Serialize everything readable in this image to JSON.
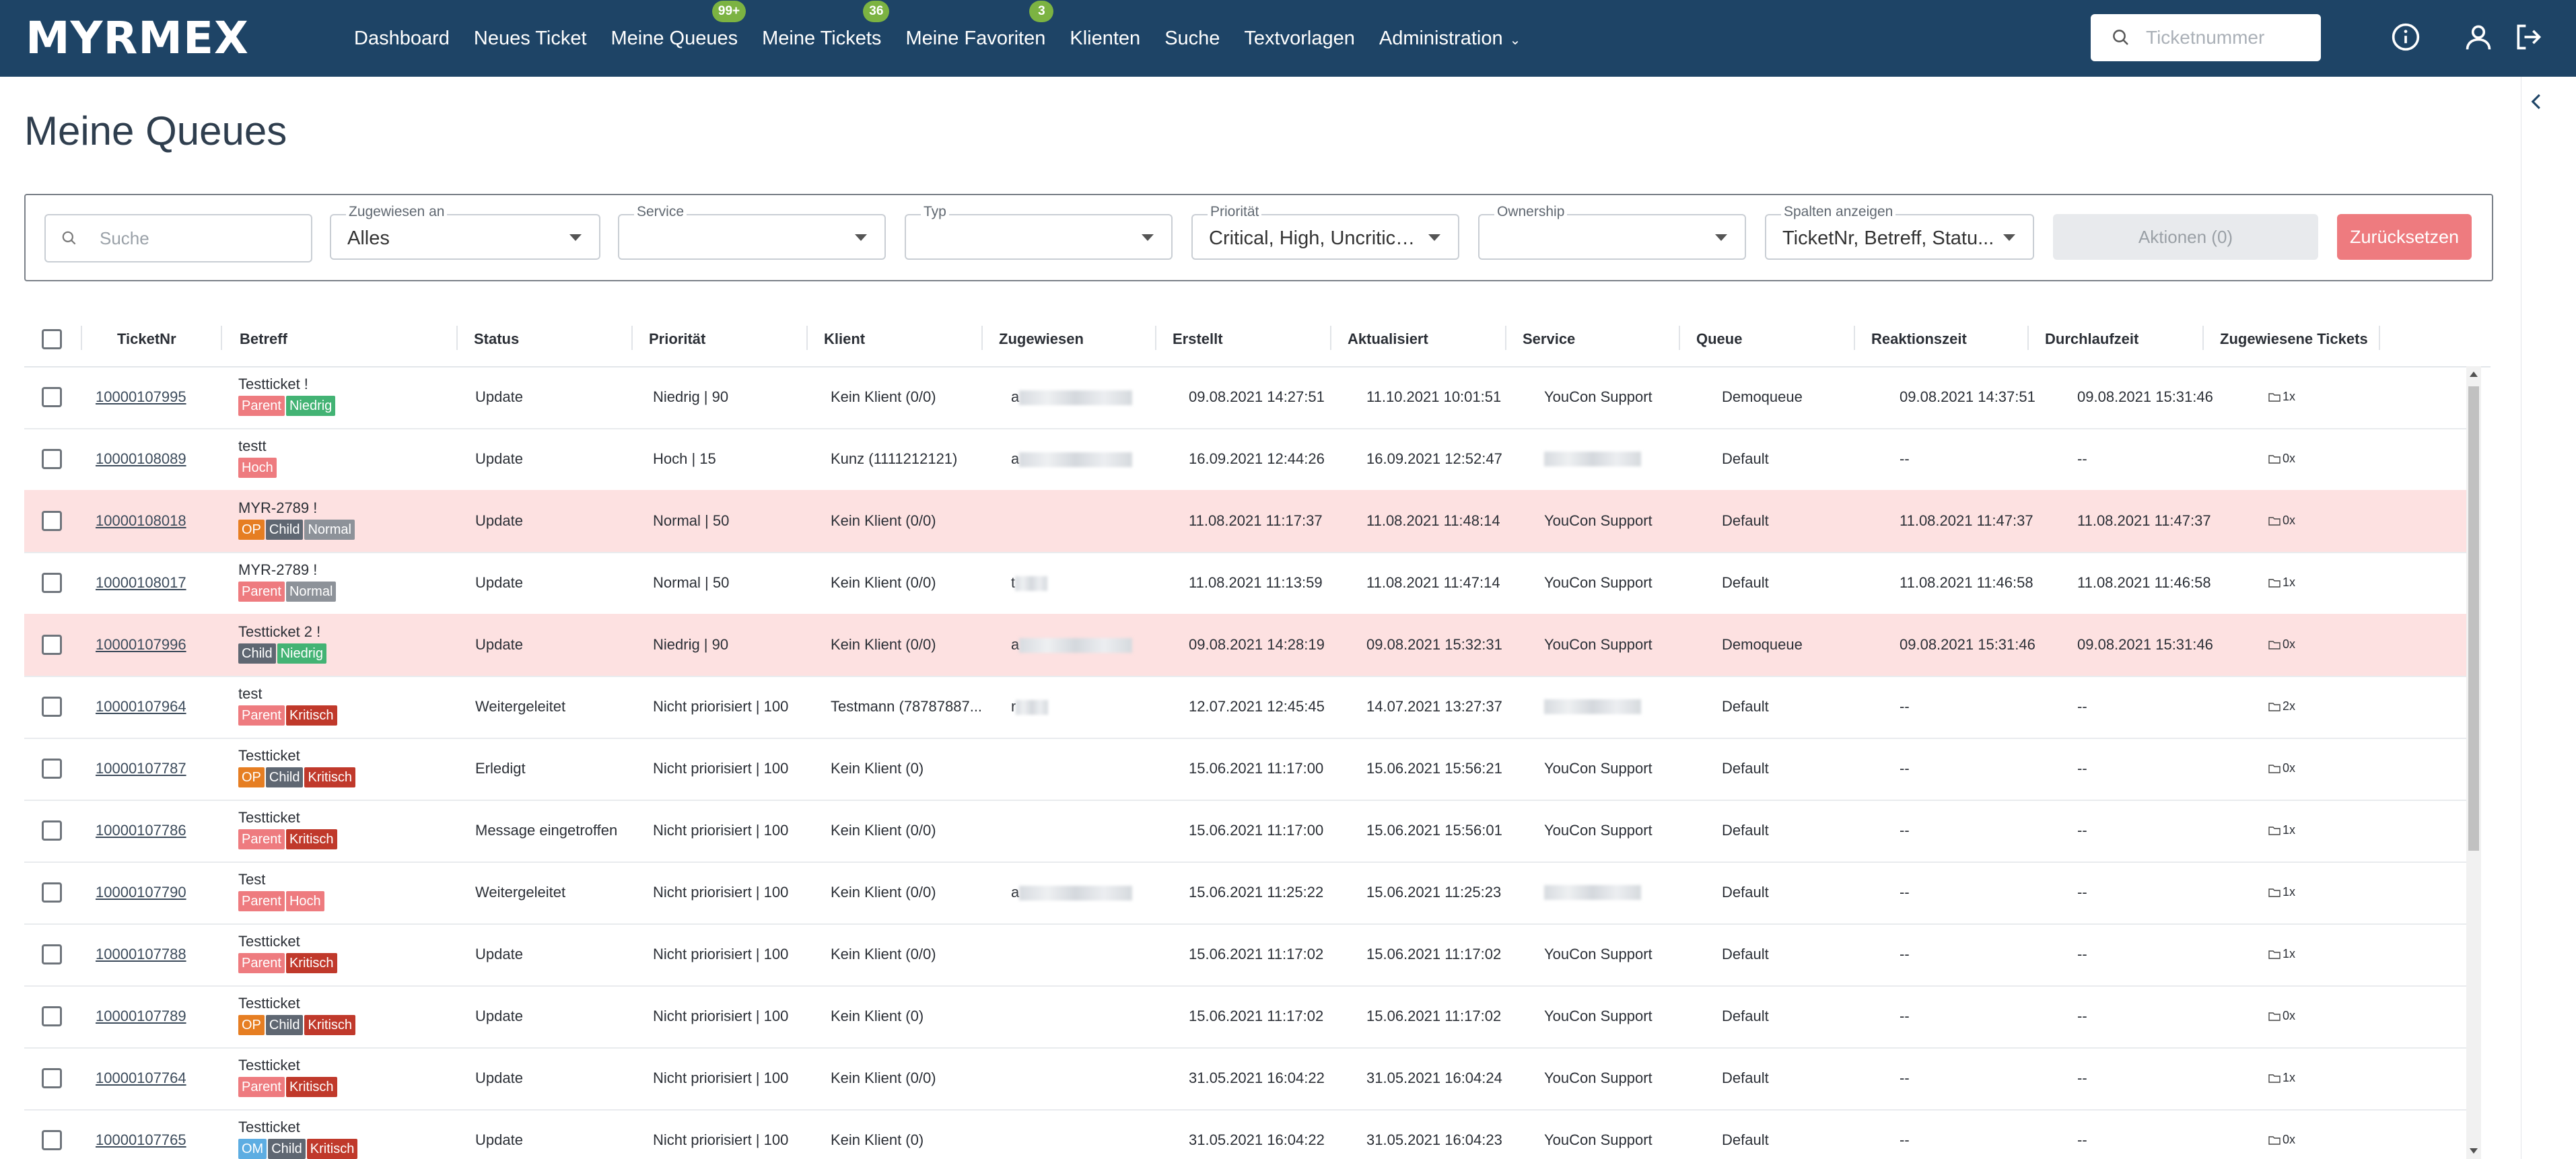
{
  "app": {
    "logo": "MYRMEX"
  },
  "nav": {
    "items": [
      {
        "label": "Dashboard",
        "badge": ""
      },
      {
        "label": "Neues Ticket",
        "badge": ""
      },
      {
        "label": "Meine Queues",
        "badge": "99+"
      },
      {
        "label": "Meine Tickets",
        "badge": "36"
      },
      {
        "label": "Meine Favoriten",
        "badge": "3"
      },
      {
        "label": "Klienten",
        "badge": ""
      },
      {
        "label": "Suche",
        "badge": ""
      },
      {
        "label": "Textvorlagen",
        "badge": ""
      },
      {
        "label": "Administration",
        "badge": ""
      }
    ],
    "ticket_search_placeholder": "Ticketnummer"
  },
  "page": {
    "title": "Meine Queues"
  },
  "filters": {
    "search_placeholder": "Suche",
    "assigned": {
      "label": "Zugewiesen an",
      "value": "Alles"
    },
    "service": {
      "label": "Service",
      "value": ""
    },
    "type": {
      "label": "Typ",
      "value": ""
    },
    "priority": {
      "label": "Priorität",
      "value": "Critical, High, Uncritical..."
    },
    "ownership": {
      "label": "Ownership",
      "value": ""
    },
    "columns": {
      "label": "Spalten anzeigen",
      "value": "TicketNr, Betreff, Statu..."
    },
    "actions_label": "Aktionen (0)",
    "reset_label": "Zurücksetzen"
  },
  "table": {
    "columns": [
      "TicketNr",
      "Betreff",
      "Status",
      "Priorität",
      "Klient",
      "Zugewiesen",
      "Erstellt",
      "Aktualisiert",
      "Service",
      "Queue",
      "Reaktionszeit",
      "Durchlaufzeit",
      "Zugewiesene Tickets"
    ],
    "rows": [
      {
        "nr": "10000107995",
        "subject": "Testticket  !",
        "tags": [
          "Parent",
          "Niedrig"
        ],
        "status": "Update",
        "priority": "Niedrig | 90",
        "client": "Kein Klient (0/0)",
        "assigned": "a",
        "created": "09.08.2021 14:27:51",
        "updated": "11.10.2021 10:01:51",
        "service": "YouCon Support",
        "queue": "Demoqueue",
        "reaction": "09.08.2021 14:37:51",
        "lead": "09.08.2021 15:31:46",
        "assigned_tickets": "1x",
        "highlight": false
      },
      {
        "nr": "10000108089",
        "subject": "testt",
        "tags": [
          "Hoch"
        ],
        "status": "Update",
        "priority": "Hoch | 15",
        "client": "Kunz (1111212121)",
        "assigned": "a",
        "created": "16.09.2021 12:44:26",
        "updated": "16.09.2021 12:52:47",
        "service": "",
        "queue": "Default",
        "reaction": "--",
        "lead": "--",
        "assigned_tickets": "0x",
        "highlight": false
      },
      {
        "nr": "10000108018",
        "subject": "MYR-2789  !",
        "tags": [
          "OP",
          "Child",
          "Normal"
        ],
        "status": "Update",
        "priority": "Normal | 50",
        "client": "Kein Klient (0/0)",
        "assigned": "",
        "created": "11.08.2021 11:17:37",
        "updated": "11.08.2021 11:48:14",
        "service": "YouCon Support",
        "queue": "Default",
        "reaction": "11.08.2021 11:47:37",
        "lead": "11.08.2021 11:47:37",
        "assigned_tickets": "0x",
        "highlight": true
      },
      {
        "nr": "10000108017",
        "subject": "MYR-2789  !",
        "tags": [
          "Parent",
          "Normal"
        ],
        "status": "Update",
        "priority": "Normal | 50",
        "client": "Kein Klient (0/0)",
        "assigned": "t",
        "created": "11.08.2021 11:13:59",
        "updated": "11.08.2021 11:47:14",
        "service": "YouCon Support",
        "queue": "Default",
        "reaction": "11.08.2021 11:46:58",
        "lead": "11.08.2021 11:46:58",
        "assigned_tickets": "1x",
        "highlight": false
      },
      {
        "nr": "10000107996",
        "subject": "Testticket 2  !",
        "tags": [
          "Child",
          "Niedrig"
        ],
        "status": "Update",
        "priority": "Niedrig | 90",
        "client": "Kein Klient (0/0)",
        "assigned": "a",
        "created": "09.08.2021 14:28:19",
        "updated": "09.08.2021 15:32:31",
        "service": "YouCon Support",
        "queue": "Demoqueue",
        "reaction": "09.08.2021 15:31:46",
        "lead": "09.08.2021 15:31:46",
        "assigned_tickets": "0x",
        "highlight": true
      },
      {
        "nr": "10000107964",
        "subject": "test",
        "tags": [
          "Parent",
          "Kritisch"
        ],
        "status": "Weitergeleitet",
        "priority": "Nicht priorisiert | 100",
        "client": "Testmann (78787887...",
        "assigned": "r",
        "created": "12.07.2021 12:45:45",
        "updated": "14.07.2021 13:27:37",
        "service": "",
        "queue": "Default",
        "reaction": "--",
        "lead": "--",
        "assigned_tickets": "2x",
        "highlight": false
      },
      {
        "nr": "10000107787",
        "subject": "Testticket",
        "tags": [
          "OP",
          "Child",
          "Kritisch"
        ],
        "status": "Erledigt",
        "priority": "Nicht priorisiert | 100",
        "client": "Kein Klient (0)",
        "assigned": "",
        "created": "15.06.2021 11:17:00",
        "updated": "15.06.2021 15:56:21",
        "service": "YouCon Support",
        "queue": "Default",
        "reaction": "--",
        "lead": "--",
        "assigned_tickets": "0x",
        "highlight": false
      },
      {
        "nr": "10000107786",
        "subject": "Testticket",
        "tags": [
          "Parent",
          "Kritisch"
        ],
        "status": "Message eingetroffen",
        "priority": "Nicht priorisiert | 100",
        "client": "Kein Klient (0/0)",
        "assigned": "",
        "created": "15.06.2021 11:17:00",
        "updated": "15.06.2021 15:56:01",
        "service": "YouCon Support",
        "queue": "Default",
        "reaction": "--",
        "lead": "--",
        "assigned_tickets": "1x",
        "highlight": false
      },
      {
        "nr": "10000107790",
        "subject": "Test",
        "tags": [
          "Parent",
          "Hoch"
        ],
        "status": "Weitergeleitet",
        "priority": "Nicht priorisiert | 100",
        "client": "Kein Klient (0/0)",
        "assigned": "a",
        "created": "15.06.2021 11:25:22",
        "updated": "15.06.2021 11:25:23",
        "service": "",
        "queue": "Default",
        "reaction": "--",
        "lead": "--",
        "assigned_tickets": "1x",
        "highlight": false
      },
      {
        "nr": "10000107788",
        "subject": "Testticket",
        "tags": [
          "Parent",
          "Kritisch"
        ],
        "status": "Update",
        "priority": "Nicht priorisiert | 100",
        "client": "Kein Klient (0/0)",
        "assigned": "",
        "created": "15.06.2021 11:17:02",
        "updated": "15.06.2021 11:17:02",
        "service": "YouCon Support",
        "queue": "Default",
        "reaction": "--",
        "lead": "--",
        "assigned_tickets": "1x",
        "highlight": false
      },
      {
        "nr": "10000107789",
        "subject": "Testticket",
        "tags": [
          "OP",
          "Child",
          "Kritisch"
        ],
        "status": "Update",
        "priority": "Nicht priorisiert | 100",
        "client": "Kein Klient (0)",
        "assigned": "",
        "created": "15.06.2021 11:17:02",
        "updated": "15.06.2021 11:17:02",
        "service": "YouCon Support",
        "queue": "Default",
        "reaction": "--",
        "lead": "--",
        "assigned_tickets": "0x",
        "highlight": false
      },
      {
        "nr": "10000107764",
        "subject": "Testticket",
        "tags": [
          "Parent",
          "Kritisch"
        ],
        "status": "Update",
        "priority": "Nicht priorisiert | 100",
        "client": "Kein Klient (0/0)",
        "assigned": "",
        "created": "31.05.2021 16:04:22",
        "updated": "31.05.2021 16:04:24",
        "service": "YouCon Support",
        "queue": "Default",
        "reaction": "--",
        "lead": "--",
        "assigned_tickets": "1x",
        "highlight": false
      },
      {
        "nr": "10000107765",
        "subject": "Testticket",
        "tags": [
          "OM",
          "Child",
          "Kritisch"
        ],
        "status": "Update",
        "priority": "Nicht priorisiert | 100",
        "client": "Kein Klient (0)",
        "assigned": "",
        "created": "31.05.2021 16:04:22",
        "updated": "31.05.2021 16:04:23",
        "service": "YouCon Support",
        "queue": "Default",
        "reaction": "--",
        "lead": "--",
        "assigned_tickets": "0x",
        "highlight": false
      }
    ]
  },
  "colors": {
    "nav_bg": "#1e4466",
    "badge": "#7cb342",
    "reset": "#ee7b7f",
    "highlight_row": "#fde1e1"
  }
}
